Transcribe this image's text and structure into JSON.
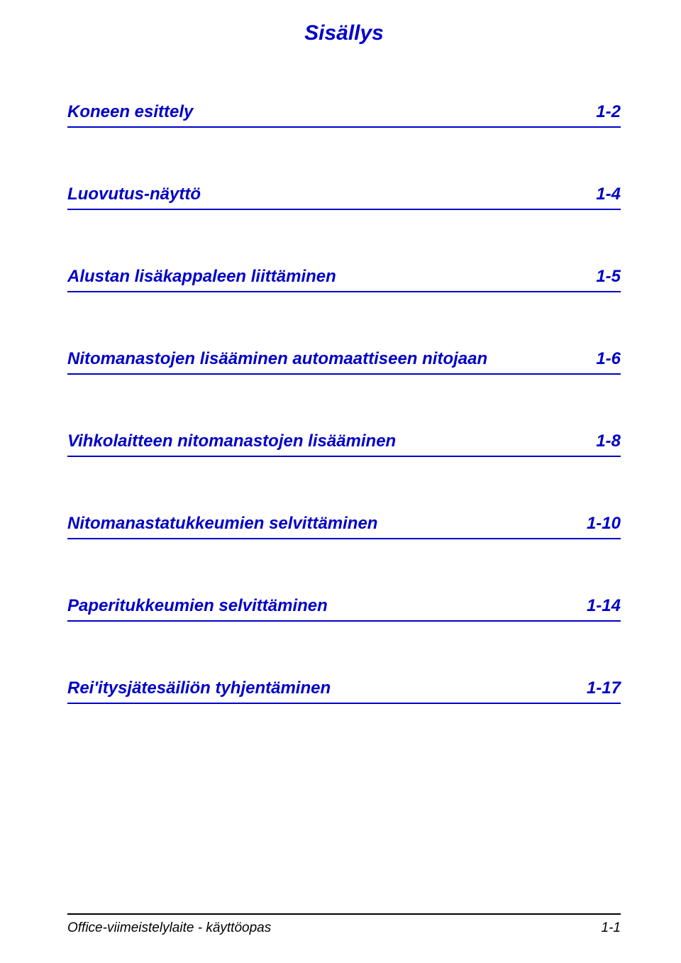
{
  "title": "Sisällys",
  "title_color": "#0000c8",
  "title_fontsize": 30,
  "toc": {
    "text_color": "#0000c8",
    "rule_color": "#0000c8",
    "fontsize": 24,
    "entries": [
      {
        "label": "Koneen esittely",
        "page": "1-2"
      },
      {
        "label": "Luovutus-näyttö",
        "page": "1-4"
      },
      {
        "label": "Alustan lisäkappaleen liittäminen",
        "page": "1-5"
      },
      {
        "label": "Nitomanastojen lisääminen automaattiseen nitojaan",
        "page": "1-6"
      },
      {
        "label": "Vihkolaitteen nitomanastojen lisääminen",
        "page": "1-8"
      },
      {
        "label": "Nitomanastatukkeumien selvittäminen",
        "page": "1-10"
      },
      {
        "label": "Paperitukkeumien selvittäminen",
        "page": "1-14"
      },
      {
        "label": "Rei'itysjätesäiliön tyhjentäminen",
        "page": "1-17"
      }
    ]
  },
  "footer": {
    "left": "Office-viimeistelylaite - käyttöopas",
    "right": "1-1",
    "rule_color": "#000000",
    "text_color": "#000000",
    "fontsize": 19
  },
  "background_color": "#ffffff"
}
